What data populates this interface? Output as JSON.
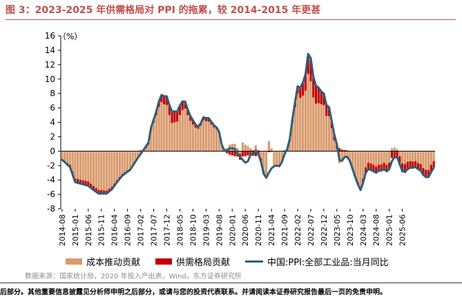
{
  "header": {
    "title": "图 3：2023-2025 年供需格局对 PPI 的拖累，较 2014-2015 年更甚"
  },
  "source": "数据来源：国家统计局，2020 年投入产出表，Wind，东方证券研究所",
  "footer": "后部分。其他重要信息披露见分析师申明之后部分，或请与您的投资代表联系。并请阅读本证券研究报告最后一页的免责申明。",
  "colors": {
    "title": "#c0504d",
    "cost_bar": "#d99a6c",
    "demand_bar": "#c00000",
    "ppi_line": "#2f5e7a"
  },
  "chart_data": {
    "type": "bar",
    "title": "",
    "unit_label": "（%）",
    "xlabel": "",
    "ylabel": "%",
    "ylim": [
      -8,
      16
    ],
    "yticks": [
      -8,
      -6,
      -4,
      -2,
      0,
      2,
      4,
      6,
      8,
      10,
      12,
      14,
      16
    ],
    "xtick_labels": [
      "2014-08",
      "2015-01",
      "2015-06",
      "2015-11",
      "2016-04",
      "2016-09",
      "2017-02",
      "2017-07",
      "2017-12",
      "2018-05",
      "2018-10",
      "2019-03",
      "2019-08",
      "2020-01",
      "2020-06",
      "2020-11",
      "2021-04",
      "2021-09",
      "2022-02",
      "2022-07",
      "2022-12",
      "2023-05",
      "2023-10",
      "2024-03",
      "2024-08",
      "2025-01",
      "2025-06"
    ],
    "legend": [
      "成本推动贡献",
      "供需格局贡献",
      "中国:PPI:全部工业品:当月同比"
    ],
    "series": [
      {
        "name": "成本推动贡献",
        "kind": "bar"
      },
      {
        "name": "供需格局贡献",
        "kind": "bar"
      },
      {
        "name": "中国:PPI:全部工业品:当月同比",
        "kind": "line"
      }
    ],
    "ppi_knots": [
      [
        0,
        -1.2
      ],
      [
        3,
        -2.2
      ],
      [
        5,
        -4.3
      ],
      [
        8,
        -4.6
      ],
      [
        10,
        -4.8
      ],
      [
        12,
        -5.4
      ],
      [
        14,
        -5.9
      ],
      [
        17,
        -5.9
      ],
      [
        19,
        -5.3
      ],
      [
        21,
        -4.3
      ],
      [
        23,
        -3.4
      ],
      [
        26,
        -2.6
      ],
      [
        29,
        -0.9
      ],
      [
        31,
        0.1
      ],
      [
        33,
        1.2
      ],
      [
        34,
        3.3
      ],
      [
        36,
        5.5
      ],
      [
        37,
        6.9
      ],
      [
        38,
        7.8
      ],
      [
        39,
        7.6
      ],
      [
        40,
        7.6
      ],
      [
        41,
        6.4
      ],
      [
        42,
        5.5
      ],
      [
        44,
        5.5
      ],
      [
        45,
        6.3
      ],
      [
        46,
        6.9
      ],
      [
        47,
        6.9
      ],
      [
        48,
        5.8
      ],
      [
        49,
        4.9
      ],
      [
        50,
        4.3
      ],
      [
        51,
        3.7
      ],
      [
        52,
        3.4
      ],
      [
        53,
        3.9
      ],
      [
        54,
        4.7
      ],
      [
        55,
        4.6
      ],
      [
        56,
        4.6
      ],
      [
        57,
        4.1
      ],
      [
        58,
        3.6
      ],
      [
        59,
        3.3
      ],
      [
        60,
        2.7
      ],
      [
        61,
        0.9
      ],
      [
        62,
        0.1
      ],
      [
        63,
        0.1
      ],
      [
        64,
        0.4
      ],
      [
        65,
        0.4
      ],
      [
        66,
        0.3
      ],
      [
        67,
        -0.3
      ],
      [
        68,
        -0.8
      ],
      [
        69,
        -1.2
      ],
      [
        70,
        -1.6
      ],
      [
        71,
        -1.4
      ],
      [
        72,
        -0.5
      ],
      [
        73,
        -0.5
      ],
      [
        74,
        0.1
      ],
      [
        75,
        -0.4
      ],
      [
        76,
        -1.5
      ],
      [
        77,
        -3.1
      ],
      [
        78,
        -3.7
      ],
      [
        79,
        -3.0
      ],
      [
        80,
        -2.4
      ],
      [
        81,
        -2.1
      ],
      [
        82,
        -2.0
      ],
      [
        83,
        -2.1
      ],
      [
        84,
        -1.5
      ],
      [
        85,
        -0.4
      ],
      [
        86,
        0.3
      ],
      [
        87,
        1.7
      ],
      [
        88,
        4.4
      ],
      [
        89,
        6.8
      ],
      [
        90,
        9.0
      ],
      [
        91,
        8.8
      ],
      [
        92,
        9.5
      ],
      [
        93,
        10.7
      ],
      [
        94,
        13.5
      ],
      [
        95,
        12.9
      ],
      [
        96,
        10.3
      ],
      [
        97,
        9.1
      ],
      [
        98,
        8.8
      ],
      [
        99,
        8.3
      ],
      [
        100,
        8.0
      ],
      [
        101,
        6.4
      ],
      [
        102,
        6.1
      ],
      [
        103,
        4.2
      ],
      [
        104,
        2.3
      ],
      [
        105,
        0.9
      ],
      [
        106,
        -1.3
      ],
      [
        107,
        -1.3
      ],
      [
        108,
        -0.8
      ],
      [
        109,
        -0.8
      ],
      [
        110,
        -1.4
      ],
      [
        111,
        -2.5
      ],
      [
        112,
        -3.6
      ],
      [
        113,
        -4.6
      ],
      [
        114,
        -5.4
      ],
      [
        115,
        -4.4
      ],
      [
        116,
        -3.0
      ],
      [
        117,
        -2.5
      ],
      [
        118,
        -2.6
      ],
      [
        119,
        -2.8
      ],
      [
        120,
        -3.0
      ],
      [
        121,
        -2.7
      ],
      [
        122,
        -2.7
      ],
      [
        123,
        -2.5
      ],
      [
        124,
        -2.8
      ],
      [
        125,
        -2.5
      ],
      [
        126,
        -1.4
      ],
      [
        127,
        -0.8
      ],
      [
        128,
        -0.8
      ],
      [
        129,
        -1.8
      ],
      [
        130,
        -2.8
      ],
      [
        131,
        -2.9
      ],
      [
        132,
        -2.5
      ],
      [
        133,
        -2.3
      ],
      [
        134,
        -2.3
      ],
      [
        135,
        -2.2
      ],
      [
        136,
        -2.5
      ],
      [
        137,
        -2.7
      ],
      [
        138,
        -3.3
      ],
      [
        139,
        -3.6
      ],
      [
        140,
        -3.6
      ],
      [
        141,
        -2.9
      ],
      [
        142,
        -2.3
      ]
    ],
    "demand_knots": [
      [
        0,
        0
      ],
      [
        5,
        -0.5
      ],
      [
        10,
        -0.6
      ],
      [
        15,
        -0.5
      ],
      [
        20,
        -0.3
      ],
      [
        25,
        -0.2
      ],
      [
        30,
        0.1
      ],
      [
        33,
        0.3
      ],
      [
        36,
        0.5
      ],
      [
        38,
        1.0
      ],
      [
        40,
        1.2
      ],
      [
        42,
        1.6
      ],
      [
        44,
        1.4
      ],
      [
        46,
        1.2
      ],
      [
        48,
        0.8
      ],
      [
        50,
        0.6
      ],
      [
        52,
        0.3
      ],
      [
        54,
        0.4
      ],
      [
        56,
        0.5
      ],
      [
        58,
        0.3
      ],
      [
        60,
        0.2
      ],
      [
        62,
        -0.1
      ],
      [
        64,
        -0.5
      ],
      [
        66,
        -0.7
      ],
      [
        68,
        -0.8
      ],
      [
        70,
        -0.7
      ],
      [
        72,
        -0.5
      ],
      [
        74,
        -0.7
      ],
      [
        76,
        -0.5
      ],
      [
        78,
        -0.2
      ],
      [
        80,
        -0.1
      ],
      [
        84,
        0.0
      ],
      [
        86,
        0.2
      ],
      [
        88,
        0.4
      ],
      [
        90,
        1.0
      ],
      [
        92,
        1.8
      ],
      [
        94,
        2.8
      ],
      [
        95,
        3.2
      ],
      [
        97,
        2.5
      ],
      [
        99,
        1.8
      ],
      [
        101,
        1.5
      ],
      [
        103,
        1.0
      ],
      [
        105,
        0.6
      ],
      [
        107,
        0.2
      ],
      [
        109,
        0.1
      ],
      [
        111,
        -0.1
      ],
      [
        113,
        -0.3
      ],
      [
        115,
        -0.6
      ],
      [
        117,
        -0.9
      ],
      [
        119,
        -0.9
      ],
      [
        121,
        -0.8
      ],
      [
        123,
        -0.9
      ],
      [
        125,
        -0.9
      ],
      [
        127,
        -1.0
      ],
      [
        129,
        -1.1
      ],
      [
        131,
        -1.1
      ],
      [
        133,
        -0.9
      ],
      [
        135,
        -0.8
      ],
      [
        137,
        -0.9
      ],
      [
        139,
        -1.0
      ],
      [
        141,
        -1.0
      ],
      [
        142,
        -0.9
      ]
    ],
    "cost_overrides": [
      [
        68,
        -0.4
      ],
      [
        69,
        1.2
      ],
      [
        70,
        0.9
      ],
      [
        71,
        0.7
      ],
      [
        72,
        0.4
      ],
      [
        73,
        0.2
      ],
      [
        79,
        1.4
      ],
      [
        80,
        0.4
      ],
      [
        126,
        0.4
      ],
      [
        127,
        0.5
      ],
      [
        128,
        0.3
      ]
    ]
  }
}
